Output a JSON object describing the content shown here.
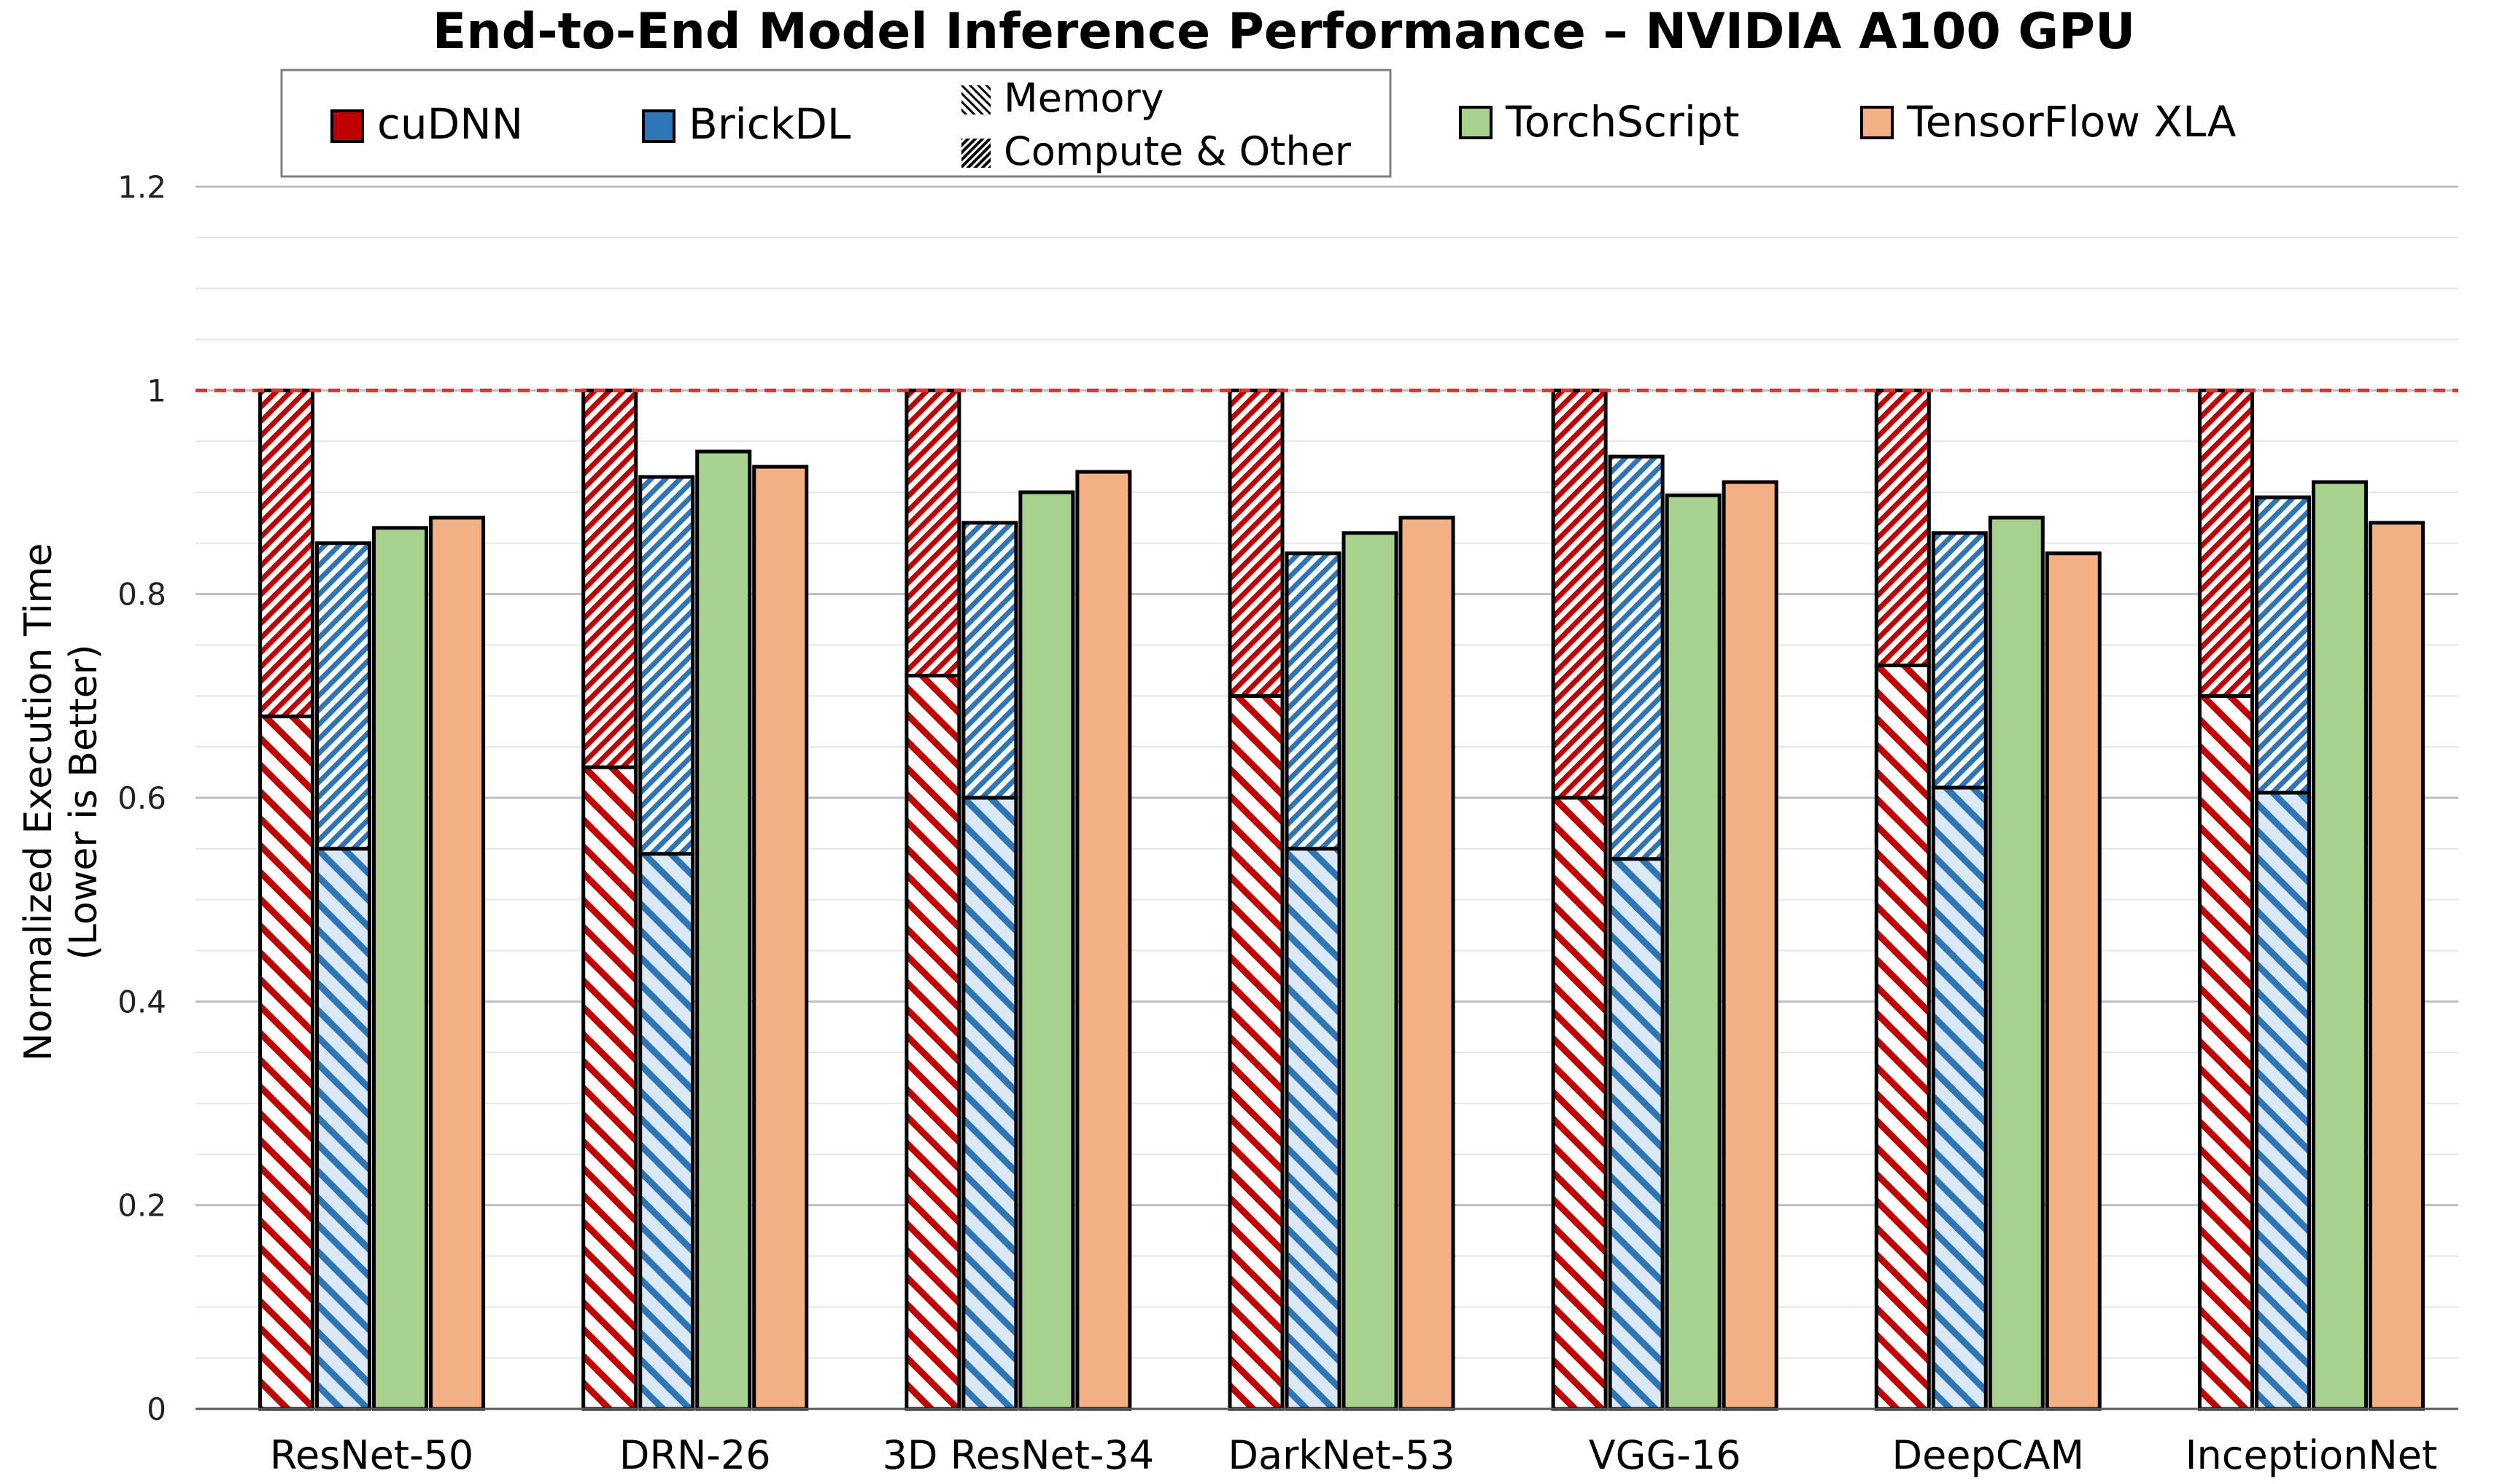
{
  "chart_data": {
    "type": "bar",
    "title": "End-to-End Model Inference Performance – NVIDIA A100 GPU",
    "ylabel": "Normalized Execution Time",
    "ylabel_sub": "(Lower is Better)",
    "xlabel": "",
    "ylim": [
      0,
      1.2
    ],
    "yticks": [
      "0",
      "0.2",
      "0.4",
      "0.6",
      "0.8",
      "1",
      "1.2"
    ],
    "ytick_values": [
      0,
      0.2,
      0.4,
      0.6,
      0.8,
      1.0,
      1.2
    ],
    "minor_grid_step": 0.05,
    "grid": true,
    "reference_line": 1.0,
    "categories": [
      "ResNet-50",
      "DRN-26",
      "3D ResNet-34",
      "DarkNet-53",
      "VGG-16",
      "DeepCAM",
      "InceptionNet"
    ],
    "series": [
      {
        "name": "cuDNN",
        "color": "#c00000",
        "stacked": true,
        "compute_other": [
          0.68,
          0.63,
          0.72,
          0.7,
          0.6,
          0.73,
          0.7
        ],
        "memory": [
          0.32,
          0.37,
          0.28,
          0.3,
          0.4,
          0.27,
          0.3
        ]
      },
      {
        "name": "BrickDL",
        "color": "#2e75b6",
        "stacked": true,
        "compute_other": [
          0.55,
          0.545,
          0.6,
          0.55,
          0.54,
          0.61,
          0.605
        ],
        "memory": [
          0.3,
          0.37,
          0.27,
          0.29,
          0.395,
          0.25,
          0.29
        ]
      },
      {
        "name": "TorchScript",
        "color": "#a9d18e",
        "stacked": false,
        "values": [
          0.865,
          0.94,
          0.9,
          0.86,
          0.897,
          0.875,
          0.91
        ]
      },
      {
        "name": "TensorFlow XLA",
        "color": "#f4b183",
        "stacked": false,
        "values": [
          0.875,
          0.925,
          0.92,
          0.875,
          0.91,
          0.84,
          0.87
        ]
      }
    ],
    "pattern_legend": [
      "Memory",
      "Compute & Other"
    ],
    "legend_position": "top"
  }
}
